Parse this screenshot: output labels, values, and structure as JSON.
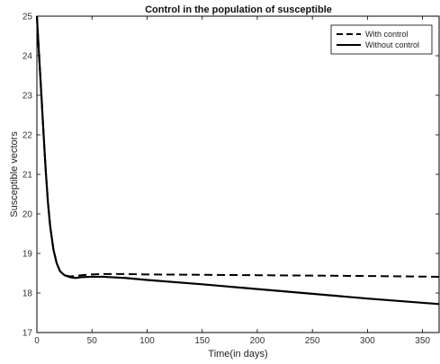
{
  "chart_data": {
    "type": "line",
    "title": "Control in the population of susceptible",
    "xlabel": "Time(in days)",
    "ylabel": "Susceptible vectors",
    "xlim": [
      0,
      365
    ],
    "ylim": [
      17,
      25
    ],
    "xticks": [
      0,
      50,
      100,
      150,
      200,
      250,
      300,
      350
    ],
    "yticks": [
      17,
      18,
      19,
      20,
      21,
      22,
      23,
      24,
      25
    ],
    "grid": false,
    "legend_position": "top-right",
    "series": [
      {
        "name": "With control",
        "style": "dashed",
        "color": "#000000",
        "x": [
          0,
          2,
          4,
          6,
          8,
          10,
          12,
          15,
          18,
          21,
          25,
          30,
          35,
          40,
          50,
          60,
          80,
          100,
          150,
          200,
          250,
          300,
          365
        ],
        "y": [
          25.0,
          24.0,
          23.05,
          22.05,
          21.1,
          20.3,
          19.7,
          19.1,
          18.75,
          18.55,
          18.45,
          18.42,
          18.43,
          18.45,
          18.47,
          18.48,
          18.48,
          18.47,
          18.46,
          18.45,
          18.44,
          18.43,
          18.41
        ]
      },
      {
        "name": "Without control",
        "style": "solid",
        "color": "#000000",
        "x": [
          0,
          2,
          4,
          6,
          8,
          10,
          12,
          15,
          18,
          21,
          25,
          30,
          35,
          40,
          50,
          60,
          80,
          100,
          150,
          200,
          250,
          300,
          365
        ],
        "y": [
          25.0,
          24.0,
          23.05,
          22.05,
          21.1,
          20.3,
          19.7,
          19.1,
          18.75,
          18.55,
          18.45,
          18.4,
          18.38,
          18.4,
          18.41,
          18.41,
          18.38,
          18.33,
          18.22,
          18.1,
          17.98,
          17.86,
          17.72
        ]
      }
    ]
  }
}
